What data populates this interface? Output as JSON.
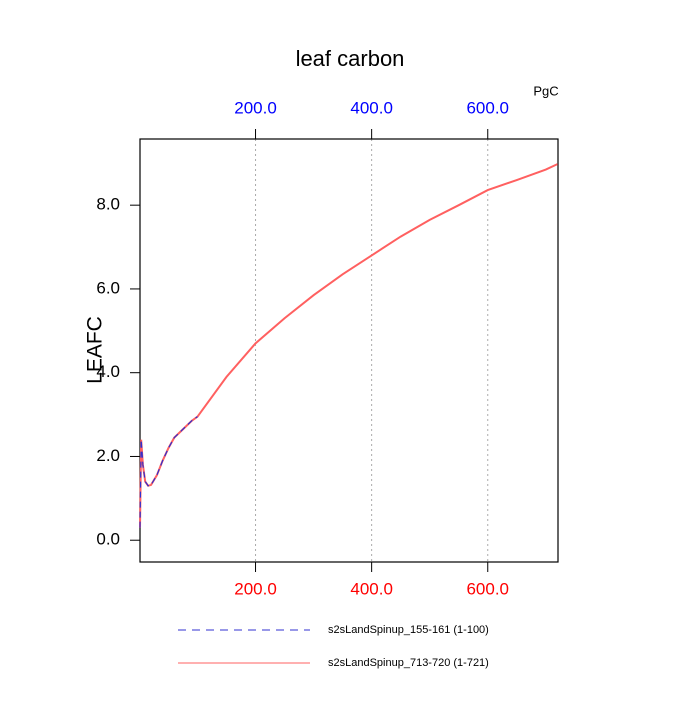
{
  "chart_data": {
    "type": "line",
    "title": "leaf carbon",
    "y_label": "LEAFC",
    "units_label": "PgC",
    "xlim": [
      1,
      721
    ],
    "ylim": [
      -0.52,
      9.58
    ],
    "xticks": [
      {
        "value": 200,
        "label": "200.0"
      },
      {
        "value": 400,
        "label": "400.0"
      },
      {
        "value": 600,
        "label": "600.0"
      }
    ],
    "yticks": [
      {
        "value": 0,
        "label": "0.0"
      },
      {
        "value": 2,
        "label": "2.0"
      },
      {
        "value": 4,
        "label": "4.0"
      },
      {
        "value": 6,
        "label": "6.0"
      },
      {
        "value": 8,
        "label": "8.0"
      }
    ],
    "grid": true,
    "top_tick_color": "#0000ff",
    "bottom_tick_color": "#ff0000",
    "series": [
      {
        "name": "s2sLandSpinup_713-720 (1-721)",
        "color": "#ff6060",
        "dash": false,
        "x": [
          1,
          3,
          6,
          10,
          15,
          20,
          30,
          40,
          50,
          60,
          75,
          90,
          100,
          150,
          200,
          250,
          300,
          350,
          400,
          450,
          500,
          550,
          600,
          650,
          700,
          720
        ],
        "values": [
          0.3,
          2.4,
          1.8,
          1.4,
          1.3,
          1.32,
          1.55,
          1.9,
          2.2,
          2.45,
          2.65,
          2.85,
          2.95,
          3.9,
          4.7,
          5.3,
          5.85,
          6.35,
          6.8,
          7.25,
          7.65,
          8.0,
          8.36,
          8.6,
          8.85,
          8.98
        ]
      },
      {
        "name": "s2sLandSpinup_155-161 (1-100)",
        "color": "#3030d0",
        "dash": true,
        "x": [
          1,
          3,
          6,
          10,
          15,
          20,
          30,
          40,
          50,
          60,
          75,
          90,
          100
        ],
        "values": [
          0.3,
          2.4,
          1.8,
          1.4,
          1.3,
          1.32,
          1.55,
          1.9,
          2.2,
          2.45,
          2.65,
          2.85,
          2.95
        ]
      }
    ]
  }
}
